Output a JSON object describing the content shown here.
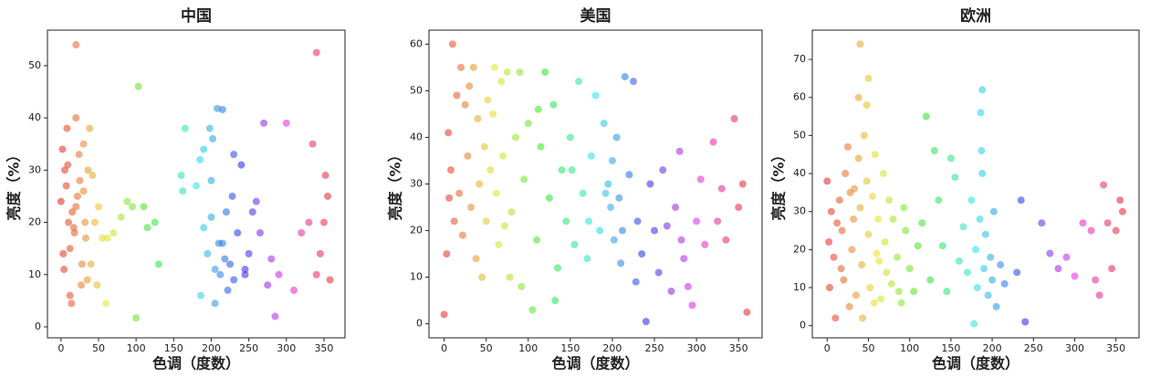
{
  "chart_data": [
    {
      "type": "scatter",
      "title": "中国",
      "xlabel": "色调（度数）",
      "ylabel": "亮度（%）",
      "xlim": [
        -18,
        378
      ],
      "xticks": [
        0,
        50,
        100,
        150,
        200,
        250,
        300,
        350
      ],
      "ylim": [
        -2.1,
        56.8
      ],
      "yticks": [
        0,
        10,
        20,
        30,
        40,
        50
      ],
      "x": [
        20,
        340,
        103,
        0,
        2,
        5,
        8,
        10,
        12,
        15,
        18,
        20,
        22,
        25,
        28,
        30,
        32,
        35,
        38,
        3,
        7,
        14,
        24,
        33,
        4,
        9,
        17,
        27,
        36,
        12,
        20,
        30,
        40,
        45,
        50,
        55,
        42,
        48,
        60,
        62,
        70,
        80,
        88,
        95,
        100,
        110,
        115,
        125,
        130,
        160,
        162,
        165,
        180,
        185,
        190,
        195,
        198,
        200,
        202,
        205,
        208,
        210,
        212,
        215,
        218,
        220,
        222,
        225,
        228,
        230,
        235,
        240,
        245,
        250,
        255,
        260,
        265,
        270,
        275,
        280,
        285,
        290,
        300,
        310,
        320,
        330,
        335,
        340,
        345,
        350,
        355,
        358,
        200,
        215,
        190,
        205,
        186,
        230,
        245,
        352
      ],
      "values": [
        54,
        52.5,
        46,
        24,
        34,
        30,
        38,
        20,
        15,
        22,
        18,
        40,
        25,
        28,
        12,
        35,
        20,
        9,
        38,
        14,
        27,
        4.5,
        33,
        17,
        11,
        31,
        19,
        8,
        30,
        6,
        23,
        26,
        12,
        20,
        23,
        17,
        29,
        8,
        4.5,
        17,
        18,
        21,
        24,
        23,
        1.7,
        23,
        19,
        20,
        12,
        29,
        26,
        38,
        27,
        32,
        34,
        14,
        38,
        21,
        36,
        11,
        41.8,
        16,
        10,
        41.6,
        13,
        22,
        7,
        12,
        25,
        9,
        18,
        31,
        11,
        14,
        22,
        24,
        18,
        39,
        8,
        13,
        2,
        10,
        39,
        7,
        18,
        20,
        35,
        10,
        14,
        20,
        25,
        9,
        28,
        16,
        19,
        4.5,
        6,
        33,
        10,
        29
      ]
    },
    {
      "type": "scatter",
      "title": "美国",
      "xlabel": "色调（度数）",
      "ylabel": "亮度（%）",
      "xlim": [
        -18,
        378
      ],
      "xticks": [
        0,
        50,
        100,
        150,
        200,
        250,
        300,
        350
      ],
      "ylim": [
        -3,
        63
      ],
      "yticks": [
        0,
        10,
        20,
        30,
        40,
        50,
        60
      ],
      "x": [
        10,
        20,
        15,
        25,
        30,
        35,
        5,
        8,
        12,
        18,
        22,
        28,
        32,
        38,
        40,
        42,
        45,
        48,
        50,
        55,
        58,
        60,
        62,
        65,
        68,
        70,
        75,
        78,
        80,
        85,
        90,
        95,
        100,
        105,
        110,
        115,
        120,
        125,
        130,
        135,
        140,
        145,
        150,
        155,
        160,
        165,
        170,
        175,
        180,
        185,
        190,
        195,
        198,
        200,
        202,
        205,
        208,
        210,
        215,
        220,
        225,
        228,
        230,
        235,
        240,
        245,
        250,
        255,
        260,
        265,
        270,
        275,
        280,
        285,
        290,
        295,
        300,
        305,
        310,
        320,
        325,
        330,
        335,
        345,
        350,
        355,
        360,
        0,
        3,
        6,
        52,
        72,
        92,
        112,
        132,
        152,
        172,
        192,
        212,
        282
      ],
      "values": [
        60,
        55,
        49,
        47,
        51,
        55,
        41,
        33,
        22,
        28,
        19,
        36,
        25,
        14,
        44,
        30,
        10,
        38,
        22,
        33,
        45,
        55,
        28,
        17,
        52,
        36,
        54,
        10,
        24,
        40,
        54,
        31,
        43,
        3,
        18,
        38,
        54,
        27,
        47,
        12,
        33,
        22,
        40,
        17,
        52,
        28,
        14,
        36,
        49,
        20,
        43,
        30,
        25,
        35,
        18,
        40,
        27,
        13,
        53,
        32,
        52,
        9,
        22,
        15,
        0.5,
        30,
        20,
        11,
        33,
        21,
        7,
        25,
        37,
        14,
        8,
        4,
        22,
        31,
        17,
        39,
        22,
        29,
        18,
        44,
        25,
        30,
        2.5,
        2,
        15,
        27,
        48,
        21,
        8,
        46,
        5,
        33,
        22,
        28,
        20,
        18
      ]
    },
    {
      "type": "scatter",
      "title": "欧洲",
      "xlabel": "色调（度数）",
      "ylabel": "亮度（%）",
      "xlim": [
        -18,
        378
      ],
      "xticks": [
        0,
        50,
        100,
        150,
        200,
        250,
        300,
        350
      ],
      "ylim": [
        -3.2,
        77.7
      ],
      "yticks": [
        0,
        10,
        20,
        30,
        40,
        50,
        60,
        70
      ],
      "x": [
        40,
        50,
        38,
        48,
        188,
        186,
        120,
        0,
        2,
        5,
        8,
        10,
        12,
        15,
        18,
        20,
        22,
        25,
        28,
        30,
        32,
        35,
        38,
        40,
        42,
        45,
        48,
        50,
        52,
        55,
        58,
        60,
        62,
        65,
        68,
        70,
        72,
        75,
        78,
        80,
        85,
        90,
        95,
        100,
        105,
        110,
        115,
        125,
        130,
        135,
        140,
        145,
        150,
        155,
        160,
        165,
        170,
        175,
        178,
        180,
        182,
        185,
        188,
        190,
        192,
        195,
        198,
        200,
        202,
        205,
        210,
        215,
        230,
        235,
        240,
        260,
        270,
        280,
        290,
        300,
        310,
        320,
        325,
        330,
        335,
        340,
        345,
        350,
        355,
        358,
        3,
        17,
        27,
        33,
        43,
        57,
        63,
        87,
        93,
        187
      ],
      "values": [
        74,
        65,
        60,
        58,
        62,
        56,
        55,
        38,
        22,
        30,
        18,
        2,
        27,
        33,
        25,
        12,
        40,
        47,
        35,
        20,
        28,
        8,
        44,
        31,
        16,
        50,
        38,
        24,
        10,
        34,
        45,
        19,
        28,
        7,
        40,
        22,
        14,
        33,
        11,
        28,
        18,
        6,
        25,
        15,
        9,
        21,
        27,
        12,
        46,
        33,
        21,
        9,
        44,
        39,
        17,
        26,
        14,
        33,
        0.5,
        20,
        10,
        28,
        40,
        15,
        24,
        8,
        18,
        12,
        30,
        5,
        16,
        11,
        14,
        33,
        1,
        27,
        19,
        15,
        18,
        13,
        27,
        25,
        12,
        8,
        37,
        27,
        15,
        25,
        33,
        30,
        10,
        15,
        5,
        36,
        2,
        6,
        17,
        9,
        31,
        46
      ]
    }
  ]
}
